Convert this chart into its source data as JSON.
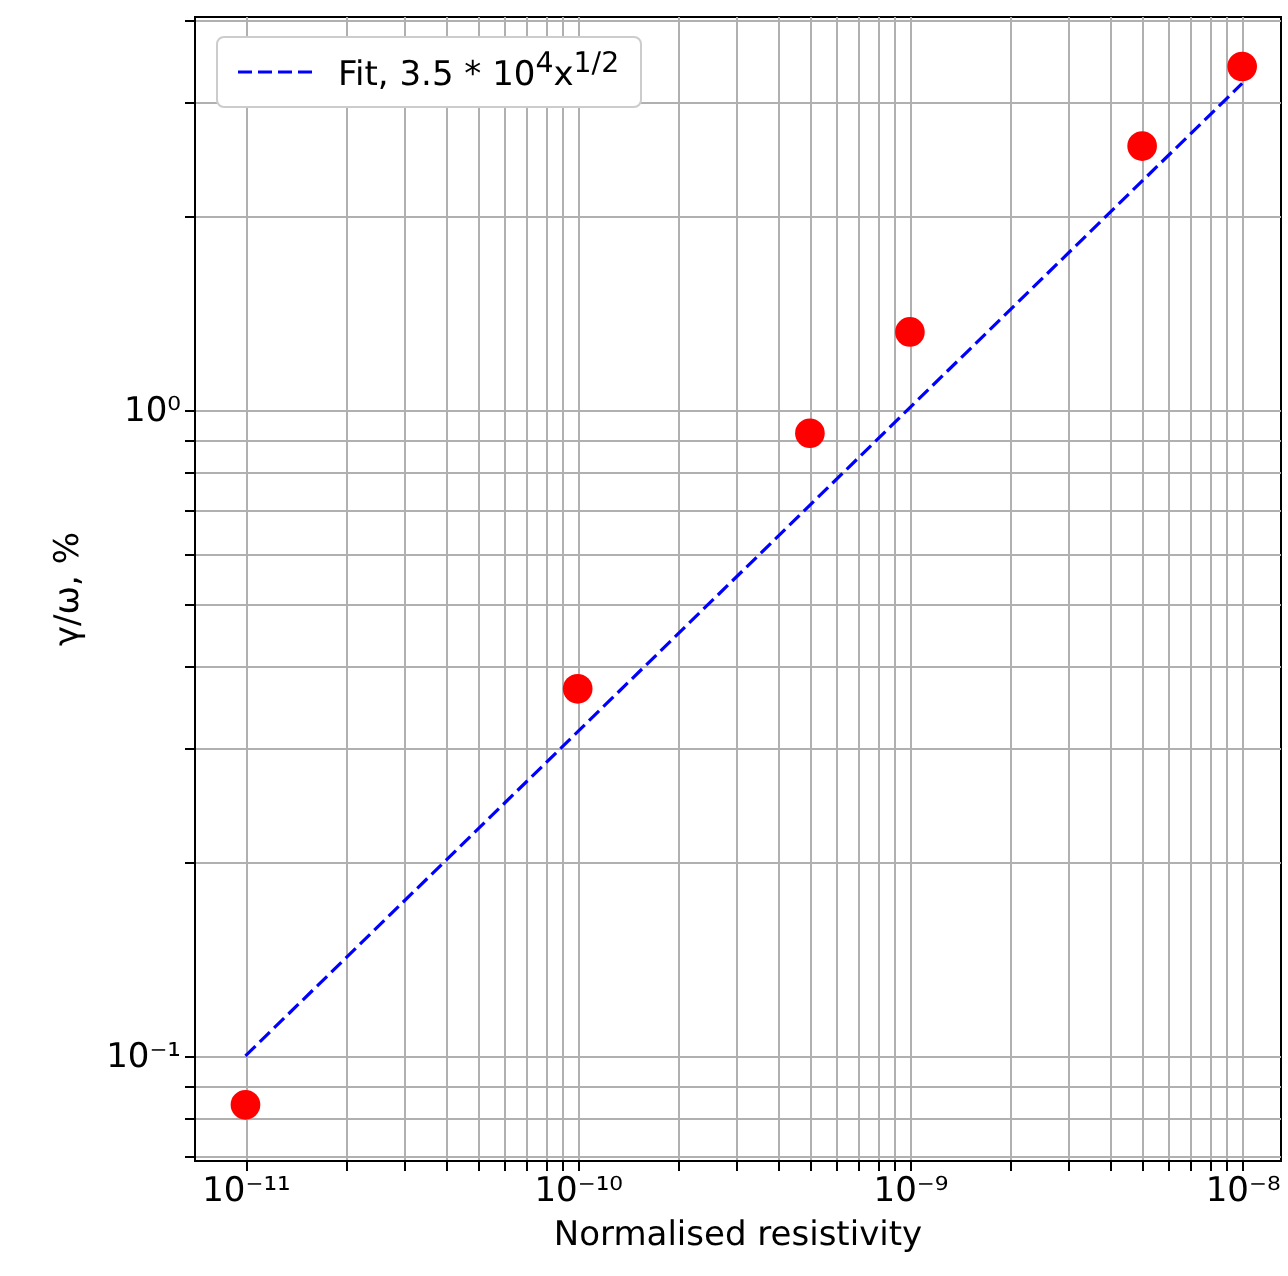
{
  "chart_data": {
    "type": "scatter",
    "xlabel": "Normalised resistivity",
    "ylabel": "γ/ω, %",
    "log": "xy",
    "grid": true,
    "legend": "top left",
    "marker": "circle",
    "xlim": [
      7e-12,
      1.3e-08
    ],
    "ylim": [
      0.069,
      4.07
    ],
    "xticks": [
      {
        "value": 1e-11,
        "label": "10⁻¹¹"
      },
      {
        "value": 2e-11,
        "label": null
      },
      {
        "value": 3e-11,
        "label": null
      },
      {
        "value": 4e-11,
        "label": null
      },
      {
        "value": 5e-11,
        "label": null
      },
      {
        "value": 6e-11,
        "label": null
      },
      {
        "value": 7e-11,
        "label": null
      },
      {
        "value": 8e-11,
        "label": null
      },
      {
        "value": 9e-11,
        "label": null
      },
      {
        "value": 1e-10,
        "label": "10⁻¹⁰"
      },
      {
        "value": 2e-10,
        "label": null
      },
      {
        "value": 3e-10,
        "label": null
      },
      {
        "value": 4e-10,
        "label": null
      },
      {
        "value": 5e-10,
        "label": null
      },
      {
        "value": 6e-10,
        "label": null
      },
      {
        "value": 7e-10,
        "label": null
      },
      {
        "value": 8e-10,
        "label": null
      },
      {
        "value": 9e-10,
        "label": null
      },
      {
        "value": 1e-09,
        "label": "10⁻⁹"
      },
      {
        "value": 2e-09,
        "label": null
      },
      {
        "value": 3e-09,
        "label": null
      },
      {
        "value": 4e-09,
        "label": null
      },
      {
        "value": 5e-09,
        "label": null
      },
      {
        "value": 6e-09,
        "label": null
      },
      {
        "value": 7e-09,
        "label": null
      },
      {
        "value": 8e-09,
        "label": null
      },
      {
        "value": 9e-09,
        "label": null
      },
      {
        "value": 1e-08,
        "label": "10⁻⁸"
      }
    ],
    "yticks": [
      {
        "value": 0.07,
        "label": null
      },
      {
        "value": 0.08,
        "label": null
      },
      {
        "value": 0.09,
        "label": null
      },
      {
        "value": 0.1,
        "label": "10⁻¹"
      },
      {
        "value": 0.2,
        "label": null
      },
      {
        "value": 0.3,
        "label": null
      },
      {
        "value": 0.4,
        "label": null
      },
      {
        "value": 0.5,
        "label": null
      },
      {
        "value": 0.6,
        "label": null
      },
      {
        "value": 0.7,
        "label": null
      },
      {
        "value": 0.8,
        "label": null
      },
      {
        "value": 0.9,
        "label": null
      },
      {
        "value": 1,
        "label": "10⁰"
      },
      {
        "value": 2,
        "label": null
      },
      {
        "value": 3,
        "label": null
      },
      {
        "value": 4,
        "label": null
      }
    ],
    "series": [
      {
        "color": "#ff0000",
        "x": [
          1e-11,
          1e-10,
          5e-10,
          1e-09,
          5e-09,
          1e-08
        ],
        "values": [
          0.084,
          0.37,
          0.92,
          1.32,
          2.56,
          3.4
        ]
      },
      {
        "type": "line",
        "name": "Fit, 3.5 * 10$^{4}$x$^{1/2}$",
        "color": "#0000ff",
        "line_style": "dashed",
        "marker": "none",
        "x": [
          1e-11,
          1e-08
        ],
        "values": [
          0.1,
          3.2
        ]
      }
    ]
  }
}
